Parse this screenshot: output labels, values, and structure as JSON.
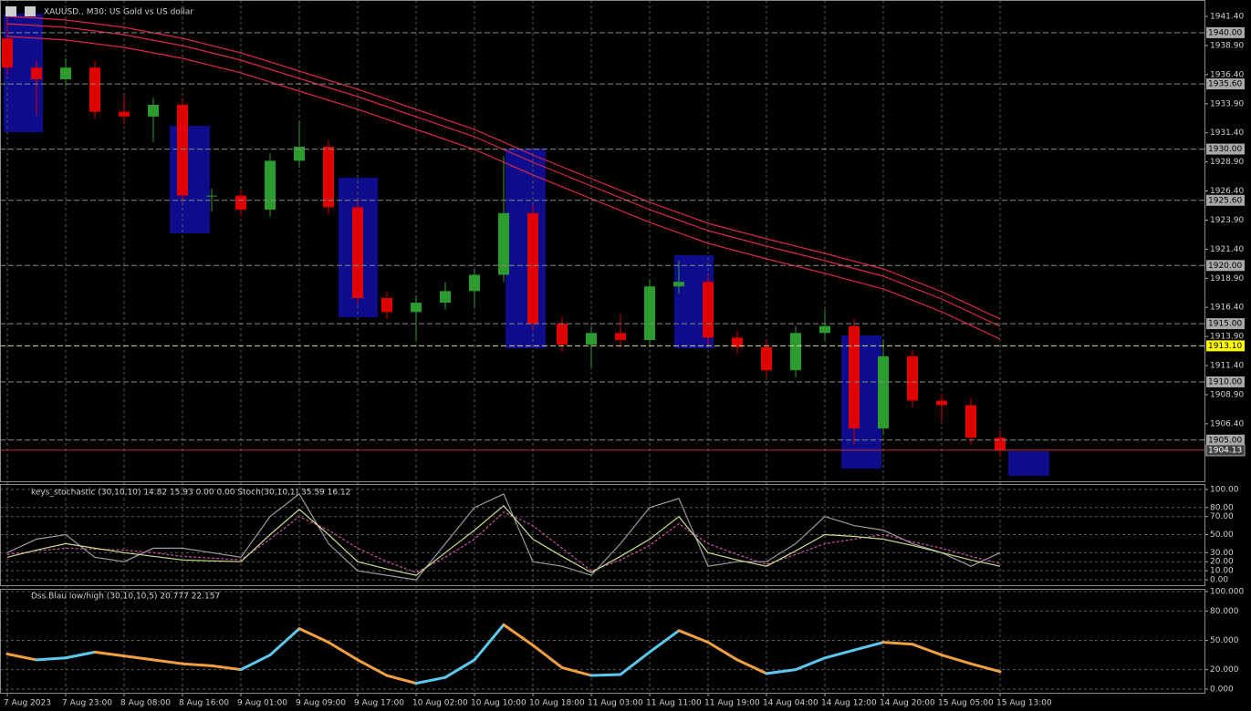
{
  "chart_data": [
    {
      "type": "candlestick",
      "title": "XAUUSD., M30:  US Gold vs US dollar",
      "categories": [
        "7 Aug 2023",
        null,
        "7 Aug 23:00",
        null,
        "8 Aug 08:00",
        null,
        "8 Aug 16:00",
        null,
        "9 Aug 01:00",
        null,
        "9 Aug 09:00",
        null,
        "9 Aug 17:00",
        null,
        "10 Aug 02:00",
        null,
        "10 Aug 10:00",
        null,
        "10 Aug 18:00",
        null,
        "11 Aug 03:00",
        null,
        "11 Aug 11:00",
        null,
        "11 Aug 19:00",
        null,
        "14 Aug 04:00",
        null,
        "14 Aug 12:00",
        null,
        "14 Aug 20:00",
        null,
        "15 Aug 05:00",
        null,
        "15 Aug 13:00"
      ],
      "open": [
        1939.5,
        1937.0,
        1936.0,
        1937.0,
        1933.2,
        1932.8,
        1933.8,
        1926.0,
        1926.0,
        1924.8,
        1929.0,
        1930.2,
        1925.0,
        1917.2,
        1916.0,
        1916.8,
        1917.8,
        1919.2,
        1924.5,
        1915.0,
        1913.2,
        1914.2,
        1913.6,
        1918.2,
        1918.6,
        1913.8,
        1913.0,
        1911.0,
        1914.2,
        1914.8,
        1906.0,
        1912.2,
        1908.4,
        1908.0,
        1905.2
      ],
      "high": [
        1941.2,
        1937.6,
        1937.8,
        1937.6,
        1934.6,
        1934.4,
        1934.4,
        1926.6,
        1926.6,
        1929.6,
        1932.4,
        1930.8,
        1925.6,
        1917.8,
        1917.4,
        1918.6,
        1919.8,
        1929.4,
        1925.2,
        1915.6,
        1914.8,
        1915.8,
        1918.8,
        1920.4,
        1919.2,
        1914.4,
        1913.6,
        1914.8,
        1916.2,
        1915.4,
        1913.6,
        1912.8,
        1909.0,
        1908.6,
        1905.8
      ],
      "low": [
        1936.4,
        1932.9,
        1935.4,
        1932.6,
        1932.2,
        1930.6,
        1925.4,
        1924.6,
        1924.2,
        1924.2,
        1928.4,
        1924.4,
        1916.6,
        1915.4,
        1913.6,
        1916.2,
        1916.4,
        1918.6,
        1914.4,
        1912.6,
        1911.2,
        1913.0,
        1913.0,
        1917.6,
        1913.2,
        1912.4,
        1910.4,
        1910.4,
        1913.6,
        1904.6,
        1905.4,
        1907.8,
        1906.6,
        1904.6,
        1903.5
      ],
      "close": [
        1937.0,
        1936.0,
        1937.0,
        1933.2,
        1932.8,
        1933.8,
        1926.0,
        1926.0,
        1924.8,
        1929.0,
        1930.2,
        1925.0,
        1917.2,
        1916.0,
        1916.8,
        1917.8,
        1919.2,
        1924.5,
        1915.0,
        1913.2,
        1914.2,
        1913.6,
        1918.2,
        1918.6,
        1913.8,
        1913.0,
        1911.0,
        1914.2,
        1914.8,
        1906.0,
        1912.2,
        1908.4,
        1908.0,
        1905.2,
        1904.13
      ],
      "up_color": "#2e9b2e",
      "down_color": "#e00000",
      "series": [
        {
          "color": "#dc2844",
          "values": [
            1941.4,
            1941.25,
            1941.09,
            1940.78,
            1940.46,
            1939.99,
            1939.52,
            1938.9,
            1938.27,
            1937.49,
            1936.7,
            1935.92,
            1935.14,
            1934.28,
            1933.41,
            1932.55,
            1931.69,
            1930.6,
            1929.5,
            1928.48,
            1927.46,
            1926.45,
            1925.43,
            1924.53,
            1923.62,
            1922.96,
            1922.29,
            1921.67,
            1921.04,
            1920.38,
            1919.71,
            1918.73,
            1917.75,
            1916.58,
            1915.4
          ]
        },
        {
          "color": "#dc2844",
          "values": [
            1940.77,
            1940.62,
            1940.46,
            1940.15,
            1939.83,
            1939.36,
            1938.89,
            1938.27,
            1937.64,
            1936.86,
            1936.07,
            1935.29,
            1934.51,
            1933.65,
            1932.78,
            1931.92,
            1931.06,
            1929.97,
            1928.87,
            1927.85,
            1926.83,
            1925.82,
            1924.8,
            1923.9,
            1922.99,
            1922.33,
            1921.66,
            1921.04,
            1920.41,
            1919.75,
            1919.08,
            1918.1,
            1917.12,
            1915.95,
            1914.77
          ]
        },
        {
          "color": "#dc2844",
          "values": [
            1939.68,
            1939.53,
            1939.37,
            1939.06,
            1938.74,
            1938.27,
            1937.8,
            1937.18,
            1936.55,
            1935.77,
            1934.98,
            1934.2,
            1933.42,
            1932.56,
            1931.69,
            1930.83,
            1929.97,
            1928.88,
            1927.78,
            1926.76,
            1925.74,
            1924.73,
            1923.71,
            1922.81,
            1921.9,
            1921.24,
            1920.57,
            1919.95,
            1919.32,
            1918.66,
            1917.99,
            1917.01,
            1916.03,
            1914.86,
            1913.68
          ]
        }
      ],
      "ylim": [
        1901.46,
        1942.81
      ],
      "yticks": [
        {
          "value": 1941.4,
          "label": "1941.40"
        },
        {
          "value": 1938.9,
          "label": "1938.90"
        },
        {
          "value": 1936.4,
          "label": "1936.40"
        },
        {
          "value": 1933.9,
          "label": "1933.90"
        },
        {
          "value": 1931.4,
          "label": "1931.40"
        },
        {
          "value": 1928.9,
          "label": "1928.90"
        },
        {
          "value": 1926.4,
          "label": "1926.40"
        },
        {
          "value": 1923.9,
          "label": "1923.90"
        },
        {
          "value": 1921.4,
          "label": "1921.40"
        },
        {
          "value": 1918.9,
          "label": "1918.90"
        },
        {
          "value": 1916.4,
          "label": "1916.40"
        },
        {
          "value": 1913.9,
          "label": "1913.90"
        },
        {
          "value": 1911.4,
          "label": "1911.40"
        },
        {
          "value": 1908.9,
          "label": "1908.90"
        },
        {
          "value": 1906.4,
          "label": "1906.40"
        }
      ],
      "levels": [
        {
          "value": 1940,
          "label": "1940.00",
          "color": "#a8a8a8"
        },
        {
          "value": 1935.6,
          "label": "1935.60",
          "color": "#a8a8a8"
        },
        {
          "value": 1930,
          "label": "1930.00",
          "color": "#a8a8a8"
        },
        {
          "value": 1925.6,
          "label": "1925.60",
          "color": "#a8a8a8"
        },
        {
          "value": 1920,
          "label": "1920.00",
          "color": "#a8a8a8"
        },
        {
          "value": 1915,
          "label": "1915.00",
          "color": "#a8a8a8"
        },
        {
          "value": 1913.1,
          "label": "1913.10",
          "color": "#ffff00"
        },
        {
          "value": 1910,
          "label": "1910.00",
          "color": "#a8a8a8"
        },
        {
          "value": 1905,
          "label": "1905.00",
          "color": "#a8a8a8"
        }
      ],
      "bid": {
        "value": 1904.13,
        "label": "1904.13",
        "color": "#c83232"
      }
    },
    {
      "type": "line",
      "title": "keys_stochastic (30,10,10) 14.82 15.93 0.00 0.00 Stoch(30,10,1) 35.59 16.12",
      "series": [
        {
          "color": "#9a9aa8",
          "values": [
            30,
            45,
            50,
            25,
            20,
            35,
            35,
            30,
            25,
            70,
            95,
            40,
            10,
            5,
            0,
            40,
            80,
            95,
            20,
            15,
            5,
            40,
            80,
            90,
            15,
            20,
            20,
            40,
            70,
            60,
            55,
            40,
            30,
            15,
            30
          ]
        },
        {
          "color": "#d04fa0",
          "dashed": true,
          "values": [
            28,
            32,
            35,
            34,
            33,
            30,
            26,
            24,
            22,
            45,
            70,
            55,
            35,
            20,
            8,
            25,
            45,
            75,
            60,
            35,
            10,
            22,
            38,
            62,
            40,
            28,
            17,
            28,
            40,
            45,
            50,
            42,
            35,
            26,
            18
          ]
        },
        {
          "color": "#c8e08a",
          "values": [
            25,
            33,
            40,
            35,
            30,
            26,
            22,
            21,
            20,
            50,
            78,
            50,
            20,
            12,
            5,
            30,
            55,
            82,
            45,
            26,
            8,
            26,
            45,
            70,
            30,
            22,
            15,
            32,
            50,
            48,
            45,
            38,
            30,
            22,
            15
          ]
        }
      ],
      "ylim": [
        -7,
        105
      ],
      "yticks": [
        {
          "value": 100,
          "label": "100.00"
        },
        {
          "value": 80,
          "label": "80.00"
        },
        {
          "value": 70,
          "label": "70.00"
        },
        {
          "value": 50,
          "label": "50.00"
        },
        {
          "value": 30,
          "label": "30.00"
        },
        {
          "value": 20,
          "label": "20.00"
        },
        {
          "value": 10,
          "label": "10.00"
        },
        {
          "value": 0,
          "label": "0.00"
        }
      ],
      "grid": true
    },
    {
      "type": "line",
      "title": "Dss.Blau low/high (30,10,10,5) 20.777 22.157",
      "rising_color": "#5bc8f0",
      "falling_color": "#f0a040",
      "series": [
        {
          "values": [
            36,
            30,
            32,
            38,
            34,
            30,
            26,
            24,
            20,
            35,
            62,
            48,
            30,
            14,
            6,
            12,
            30,
            66,
            45,
            22,
            14,
            15,
            38,
            60,
            48,
            30,
            16,
            20,
            32,
            40,
            48,
            46,
            35,
            26,
            18
          ]
        }
      ],
      "ylim": [
        -3.7,
        100.9
      ],
      "yticks": [
        {
          "value": 100,
          "label": "100.000"
        },
        {
          "value": 80,
          "label": "80.000"
        },
        {
          "value": 50,
          "label": "50.000"
        },
        {
          "value": 20,
          "label": "20.000"
        },
        {
          "value": 0,
          "label": "0.000"
        }
      ],
      "grid": true
    }
  ]
}
